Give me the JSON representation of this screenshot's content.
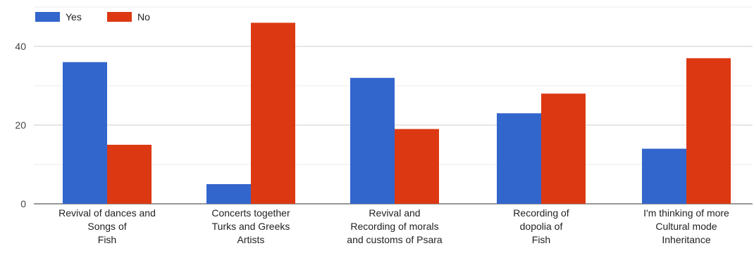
{
  "chart_data": {
    "type": "bar",
    "categories": [
      [
        "Revival of dances and",
        "Songs of",
        "Fish"
      ],
      [
        "Concerts together",
        "Turks and Greeks",
        "Artists"
      ],
      [
        "Revival and",
        "Recording of morals",
        "and customs of Psara"
      ],
      [
        "Recording of",
        "dopolia of",
        "Fish"
      ],
      [
        "I'm thinking of more",
        "Cultural mode",
        "Inheritance"
      ]
    ],
    "series": [
      {
        "name": "Yes",
        "color": "#3366cc",
        "values": [
          36,
          5,
          32,
          23,
          14
        ]
      },
      {
        "name": "No",
        "color": "#dc3912",
        "values": [
          15,
          46,
          19,
          28,
          37
        ]
      }
    ],
    "ylim": [
      0,
      50
    ],
    "yticks": [
      0,
      20,
      40
    ],
    "minor_gridlines": [
      10,
      30,
      50
    ],
    "grid": true,
    "legend_position": "top-left",
    "title": "",
    "xlabel": "",
    "ylabel": ""
  }
}
